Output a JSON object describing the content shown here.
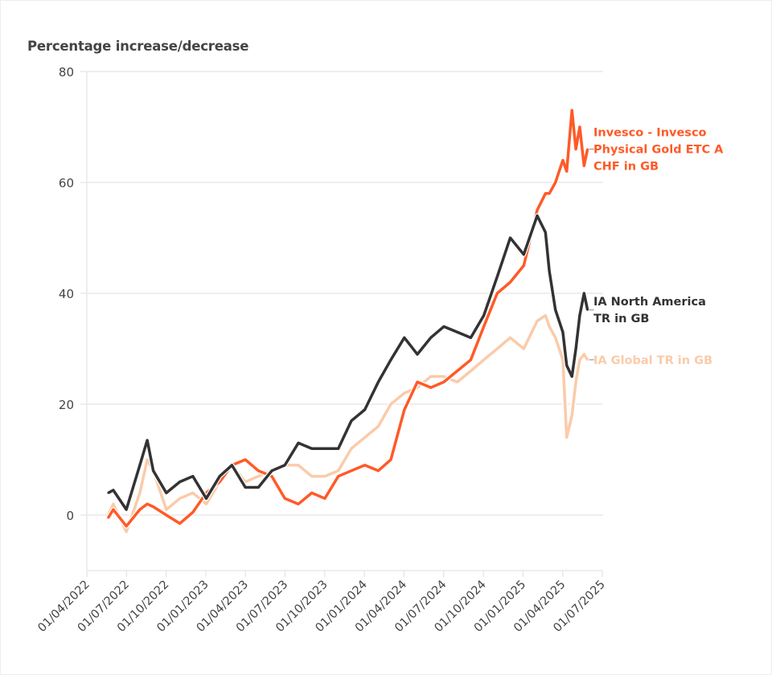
{
  "chart_data": {
    "type": "line",
    "title": "",
    "ylabel": "Percentage increase/decrease",
    "xlabel": "",
    "ylim": [
      -10,
      80
    ],
    "yticks": [
      "0",
      "20",
      "40",
      "60",
      "80"
    ],
    "xlim": [
      "2022-04-01",
      "2025-07-01"
    ],
    "xticks": [
      "01/04/2022",
      "01/07/2022",
      "01/10/2022",
      "01/01/2023",
      "01/04/2023",
      "01/07/2023",
      "01/10/2023",
      "01/01/2024",
      "01/04/2024",
      "01/07/2024",
      "01/10/2024",
      "01/01/2025",
      "01/04/2025",
      "01/07/2025"
    ],
    "grid": "horizontal",
    "legend": "right, at series ends",
    "x": [
      "2022-05-20",
      "2022-06-01",
      "2022-07-01",
      "2022-08-01",
      "2022-08-18",
      "2022-09-01",
      "2022-10-01",
      "2022-11-01",
      "2022-12-01",
      "2023-01-01",
      "2023-02-01",
      "2023-03-01",
      "2023-04-01",
      "2023-05-01",
      "2023-06-01",
      "2023-07-01",
      "2023-08-01",
      "2023-09-01",
      "2023-10-01",
      "2023-11-01",
      "2023-12-01",
      "2024-01-01",
      "2024-02-01",
      "2024-03-01",
      "2024-04-01",
      "2024-05-01",
      "2024-06-01",
      "2024-07-01",
      "2024-08-01",
      "2024-09-01",
      "2024-10-01",
      "2024-11-01",
      "2024-12-01",
      "2025-01-01",
      "2025-02-01",
      "2025-02-20",
      "2025-03-01",
      "2025-03-15",
      "2025-04-01",
      "2025-04-10",
      "2025-04-22",
      "2025-05-01",
      "2025-05-10",
      "2025-05-20",
      "2025-05-28"
    ],
    "series": [
      {
        "name": "IA Global TR in GB",
        "label_lines": [
          "IA Global TR in GB"
        ],
        "color": "#FACBAA",
        "values": [
          0,
          2,
          -3,
          4,
          10,
          8,
          1,
          3,
          4,
          2,
          6,
          9,
          6,
          7,
          8,
          9,
          9,
          7,
          7,
          8,
          12,
          14,
          16,
          20,
          22,
          23,
          25,
          25,
          24,
          26,
          28,
          30,
          32,
          30,
          35,
          36,
          34,
          32,
          28,
          14,
          18,
          24,
          28,
          29,
          28
        ]
      },
      {
        "name": "Invesco - Invesco Physical Gold ETC A CHF in GB",
        "label_lines": [
          "Invesco - Invesco",
          "Physical Gold ETC A",
          "CHF in GB"
        ],
        "color": "#FF5A28",
        "values": [
          -0.5,
          1,
          -2,
          1,
          2,
          1.5,
          0,
          -1.5,
          0.5,
          4,
          6,
          9,
          10,
          8,
          7,
          3,
          2,
          4,
          3,
          7,
          8,
          9,
          8,
          10,
          19,
          24,
          23,
          24,
          26,
          28,
          34,
          40,
          42,
          45,
          55,
          58,
          58,
          60,
          64,
          62,
          73,
          66,
          70,
          63,
          66
        ]
      },
      {
        "name": "IA North America TR in GB",
        "label_lines": [
          "IA North America",
          "TR in GB"
        ],
        "color": "#333333",
        "values": [
          4,
          4.5,
          1,
          9,
          13.5,
          8,
          4,
          6,
          7,
          3,
          7,
          9,
          5,
          5,
          8,
          9,
          13,
          12,
          12,
          12,
          17,
          19,
          24,
          28,
          32,
          29,
          32,
          34,
          33,
          32,
          36,
          43,
          50,
          47,
          54,
          51,
          44,
          37,
          33,
          27,
          25,
          30,
          36,
          40,
          37
        ]
      }
    ]
  }
}
